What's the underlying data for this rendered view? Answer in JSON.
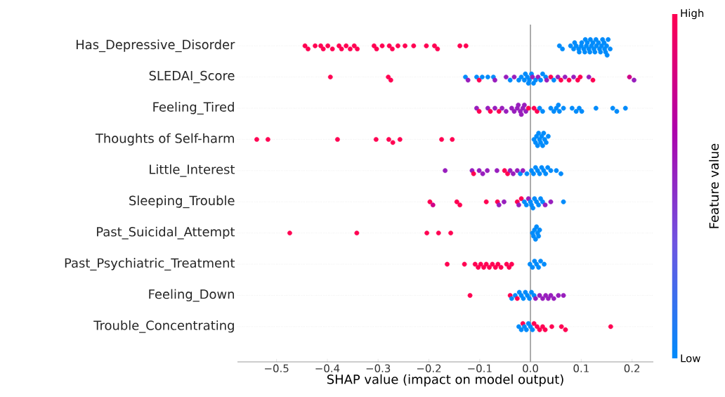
{
  "chart_data": {
    "type": "scatter",
    "orientation": "horizontal",
    "xlabel": "SHAP value (impact on model output)",
    "clabel": "Feature value",
    "categories": [
      "Has_Depressive_Disorder",
      "SLEDAI_Score",
      "Feeling_Tired",
      "Thoughts of Self-harm",
      "Little_Interest",
      "Sleeping_Trouble",
      "Past_Suicidal_Attempt",
      "Past_Psychiatric_Treatment",
      "Feeling_Down",
      "Trouble_Concentrating"
    ],
    "series": [
      {
        "x": [
          "Has_Depressive_Disorder",
          "Has_Depressive_Disorder",
          "Has_Depressive_Disorder",
          "Has_Depressive_Disorder",
          "Has_Depressive_Disorder",
          "Has_Depressive_Disorder",
          "Has_Depressive_Disorder",
          "Has_Depressive_Disorder",
          "Has_Depressive_Disorder",
          "Has_Depressive_Disorder",
          "Has_Depressive_Disorder",
          "Has_Depressive_Disorder",
          "Has_Depressive_Disorder",
          "Has_Depressive_Disorder",
          "Has_Depressive_Disorder",
          "Has_Depressive_Disorder",
          "Has_Depressive_Disorder",
          "Has_Depressive_Disorder",
          "Has_Depressive_Disorder",
          "Has_Depressive_Disorder",
          "Has_Depressive_Disorder",
          "Has_Depressive_Disorder",
          "Has_Depressive_Disorder",
          "Has_Depressive_Disorder",
          "Has_Depressive_Disorder",
          "Has_Depressive_Disorder",
          "Has_Depressive_Disorder",
          "Has_Depressive_Disorder",
          "Has_Depressive_Disorder",
          "Has_Depressive_Disorder",
          "Has_Depressive_Disorder",
          "Has_Depressive_Disorder",
          "Has_Depressive_Disorder",
          "Has_Depressive_Disorder",
          "Has_Depressive_Disorder",
          "Has_Depressive_Disorder",
          "Has_Depressive_Disorder",
          "Has_Depressive_Disorder",
          "Has_Depressive_Disorder",
          "Has_Depressive_Disorder",
          "Has_Depressive_Disorder",
          "Has_Depressive_Disorder",
          "Has_Depressive_Disorder",
          "Has_Depressive_Disorder",
          "Has_Depressive_Disorder",
          "Has_Depressive_Disorder",
          "Has_Depressive_Disorder",
          "Has_Depressive_Disorder",
          "Has_Depressive_Disorder",
          "Has_Depressive_Disorder",
          "Has_Depressive_Disorder",
          "Has_Depressive_Disorder",
          "Has_Depressive_Disorder",
          "Has_Depressive_Disorder",
          "Has_Depressive_Disorder",
          "Has_Depressive_Disorder",
          "Has_Depressive_Disorder",
          "Has_Depressive_Disorder",
          "Has_Depressive_Disorder",
          "Has_Depressive_Disorder",
          "Has_Depressive_Disorder",
          "Has_Depressive_Disorder"
        ],
        "colors": [
          "#ff0052",
          "#ff0052",
          "#ff0052",
          "#ff0052",
          "#ff0052",
          "#ff0052",
          "#ff0052",
          "#ff0052",
          "#ff0052",
          "#ff0052",
          "#ff0052",
          "#ff0052",
          "#ff0052",
          "#ff0052",
          "#ff0052",
          "#ff0052",
          "#ff0052",
          "#ff0052",
          "#ff0052",
          "#ff0052",
          "#ff0052",
          "#ff0052",
          "#ff0052",
          "#ff0052",
          "#ff0052",
          "#ff0052",
          "#008bfb",
          "#008bfb",
          "#008bfb",
          "#008bfb",
          "#008bfb",
          "#008bfb",
          "#008bfb",
          "#008bfb",
          "#008bfb",
          "#008bfb",
          "#008bfb",
          "#008bfb",
          "#008bfb",
          "#008bfb",
          "#008bfb",
          "#008bfb",
          "#008bfb",
          "#008bfb",
          "#008bfb",
          "#008bfb",
          "#008bfb",
          "#008bfb",
          "#008bfb",
          "#008bfb",
          "#008bfb",
          "#008bfb",
          "#008bfb",
          "#008bfb",
          "#008bfb",
          "#008bfb",
          "#008bfb",
          "#008bfb",
          "#008bfb",
          "#008bfb",
          "#008bfb",
          "#008bfb"
        ],
        "values": [
          -0.444,
          -0.438,
          -0.424,
          -0.413,
          -0.408,
          -0.399,
          -0.39,
          -0.377,
          -0.372,
          -0.363,
          -0.355,
          -0.347,
          -0.341,
          -0.308,
          -0.303,
          -0.292,
          -0.278,
          -0.272,
          -0.261,
          -0.247,
          -0.23,
          -0.205,
          -0.189,
          -0.183,
          -0.139,
          -0.127,
          0.057,
          0.063,
          0.079,
          0.085,
          0.087,
          0.09,
          0.095,
          0.096,
          0.1,
          0.101,
          0.105,
          0.107,
          0.108,
          0.11,
          0.112,
          0.115,
          0.117,
          0.118,
          0.12,
          0.123,
          0.125,
          0.127,
          0.129,
          0.13,
          0.134,
          0.136,
          0.138,
          0.14,
          0.142,
          0.145,
          0.146,
          0.148,
          0.15,
          0.151,
          0.153,
          0.157
        ],
        "cvalues": [
          1,
          1,
          1,
          1,
          1,
          1,
          1,
          1,
          1,
          1,
          1,
          1,
          1,
          1,
          1,
          1,
          1,
          1,
          1,
          1,
          1,
          1,
          1,
          1,
          1,
          1,
          0,
          0,
          0,
          0,
          0,
          0,
          0,
          0,
          0,
          0,
          0,
          0,
          0,
          0,
          0,
          0,
          0,
          0,
          0,
          0,
          0,
          0,
          0,
          0,
          0,
          0,
          0,
          0,
          0,
          0,
          0,
          0,
          0,
          0,
          0,
          0
        ]
      },
      {
        "x": [
          "SLEDAI_Score",
          "SLEDAI_Score",
          "SLEDAI_Score",
          "SLEDAI_Score",
          "SLEDAI_Score",
          "SLEDAI_Score",
          "SLEDAI_Score",
          "SLEDAI_Score",
          "SLEDAI_Score",
          "SLEDAI_Score",
          "SLEDAI_Score",
          "SLEDAI_Score",
          "SLEDAI_Score",
          "SLEDAI_Score",
          "SLEDAI_Score",
          "SLEDAI_Score",
          "SLEDAI_Score",
          "SLEDAI_Score",
          "SLEDAI_Score",
          "SLEDAI_Score",
          "SLEDAI_Score",
          "SLEDAI_Score",
          "SLEDAI_Score",
          "SLEDAI_Score",
          "SLEDAI_Score",
          "SLEDAI_Score",
          "SLEDAI_Score",
          "SLEDAI_Score",
          "SLEDAI_Score",
          "SLEDAI_Score",
          "SLEDAI_Score",
          "SLEDAI_Score",
          "SLEDAI_Score",
          "SLEDAI_Score",
          "SLEDAI_Score",
          "SLEDAI_Score",
          "SLEDAI_Score",
          "SLEDAI_Score",
          "SLEDAI_Score",
          "SLEDAI_Score",
          "SLEDAI_Score",
          "SLEDAI_Score",
          "SLEDAI_Score"
        ],
        "colors": [
          "#ff0052",
          "#ff0052",
          "#ff0052",
          "#008bfb",
          "#981ebd",
          "#008bfb",
          "#ff0052",
          "#008bfb",
          "#008bfb",
          "#008bfb",
          "#981ebd",
          "#981ebd",
          "#008bfb",
          "#981ebd",
          "#008bfb",
          "#008bfb",
          "#008bfb",
          "#008bfb",
          "#008bfb",
          "#008bfb",
          "#008bfb",
          "#008bfb",
          "#981ebd",
          "#008bfb",
          "#008bfb",
          "#981ebd",
          "#008bfb",
          "#008bfb",
          "#008bfb",
          "#981ebd",
          "#ff0052",
          "#008bfb",
          "#981ebd",
          "#ff0052",
          "#981ebd",
          "#ff0052",
          "#981ebd",
          "#ff0052",
          "#ff0052",
          "#981ebd",
          "#ff0052",
          "#cf0087",
          "#981ebd"
        ],
        "values": [
          -0.394,
          -0.28,
          -0.275,
          -0.128,
          -0.123,
          -0.106,
          -0.101,
          -0.095,
          -0.084,
          -0.073,
          -0.07,
          -0.048,
          -0.04,
          -0.032,
          -0.023,
          -0.018,
          -0.012,
          -0.01,
          -0.006,
          -0.004,
          -0.002,
          0.002,
          0.004,
          0.006,
          0.01,
          0.015,
          0.02,
          0.024,
          0.03,
          0.032,
          0.04,
          0.046,
          0.054,
          0.06,
          0.068,
          0.076,
          0.085,
          0.093,
          0.098,
          0.115,
          0.123,
          0.195,
          0.204
        ],
        "cvalues": [
          1,
          1,
          1,
          0,
          0.55,
          0,
          1,
          0,
          0,
          0,
          0.55,
          0.55,
          0,
          0.55,
          0,
          0,
          0,
          0,
          0,
          0,
          0,
          0,
          0.55,
          0,
          0,
          0.55,
          0,
          0,
          0,
          0.55,
          1,
          0,
          0.55,
          1,
          0.55,
          1,
          0.55,
          1,
          1,
          0.55,
          1,
          0.8,
          0.55
        ]
      },
      {
        "x": [
          "Feeling_Tired",
          "Feeling_Tired",
          "Feeling_Tired",
          "Feeling_Tired",
          "Feeling_Tired",
          "Feeling_Tired",
          "Feeling_Tired",
          "Feeling_Tired",
          "Feeling_Tired",
          "Feeling_Tired",
          "Feeling_Tired",
          "Feeling_Tired",
          "Feeling_Tired",
          "Feeling_Tired",
          "Feeling_Tired",
          "Feeling_Tired",
          "Feeling_Tired",
          "Feeling_Tired",
          "Feeling_Tired",
          "Feeling_Tired",
          "Feeling_Tired",
          "Feeling_Tired",
          "Feeling_Tired",
          "Feeling_Tired",
          "Feeling_Tired",
          "Feeling_Tired",
          "Feeling_Tired",
          "Feeling_Tired",
          "Feeling_Tired",
          "Feeling_Tired",
          "Feeling_Tired",
          "Feeling_Tired",
          "Feeling_Tired",
          "Feeling_Tired",
          "Feeling_Tired",
          "Feeling_Tired"
        ],
        "colors": [
          "#981ebd",
          "#ff0052",
          "#981ebd",
          "#ff0052",
          "#981ebd",
          "#ff0052",
          "#981ebd",
          "#981ebd",
          "#981ebd",
          "#981ebd",
          "#981ebd",
          "#981ebd",
          "#981ebd",
          "#981ebd",
          "#981ebd",
          "#981ebd",
          "#981ebd",
          "#ff0052",
          "#ff0052",
          "#ff0052",
          "#008bfb",
          "#008bfb",
          "#008bfb",
          "#008bfb",
          "#008bfb",
          "#008bfb",
          "#008bfb",
          "#008bfb",
          "#008bfb",
          "#008bfb",
          "#008bfb",
          "#008bfb",
          "#008bfb",
          "#008bfb",
          "#008bfb",
          "#008bfb"
        ],
        "values": [
          -0.106,
          -0.101,
          -0.084,
          -0.079,
          -0.07,
          -0.062,
          -0.056,
          -0.048,
          -0.037,
          -0.032,
          -0.026,
          -0.024,
          -0.02,
          -0.018,
          -0.015,
          -0.012,
          -0.009,
          -0.004,
          0.007,
          0.013,
          0.018,
          0.024,
          0.04,
          0.046,
          0.051,
          0.055,
          0.057,
          0.065,
          0.082,
          0.09,
          0.096,
          0.101,
          0.129,
          0.162,
          0.17,
          0.187
        ],
        "cvalues": [
          0.55,
          1,
          0.55,
          1,
          0.55,
          1,
          0.55,
          0.55,
          0.55,
          0.55,
          0.55,
          0.55,
          0.55,
          0.55,
          0.55,
          0.55,
          0.55,
          1,
          1,
          1,
          0,
          0,
          0,
          0,
          0,
          0,
          0,
          0,
          0,
          0,
          0,
          0,
          0,
          0,
          0,
          0
        ]
      },
      {
        "x": [
          "Thoughts of Self-harm",
          "Thoughts of Self-harm",
          "Thoughts of Self-harm",
          "Thoughts of Self-harm",
          "Thoughts of Self-harm",
          "Thoughts of Self-harm",
          "Thoughts of Self-harm",
          "Thoughts of Self-harm",
          "Thoughts of Self-harm",
          "Thoughts of Self-harm",
          "Thoughts of Self-harm",
          "Thoughts of Self-harm",
          "Thoughts of Self-harm",
          "Thoughts of Self-harm",
          "Thoughts of Self-harm",
          "Thoughts of Self-harm",
          "Thoughts of Self-harm",
          "Thoughts of Self-harm",
          "Thoughts of Self-harm",
          "Thoughts of Self-harm",
          "Thoughts of Self-harm",
          "Thoughts of Self-harm"
        ],
        "colors": [
          "#ff0052",
          "#ff0052",
          "#ff0052",
          "#ff0052",
          "#ff0052",
          "#ff0052",
          "#ff0052",
          "#ff0052",
          "#ff0052",
          "#008bfb",
          "#008bfb",
          "#008bfb",
          "#008bfb",
          "#008bfb",
          "#008bfb",
          "#008bfb",
          "#008bfb",
          "#008bfb",
          "#008bfb",
          "#008bfb",
          "#008bfb",
          "#008bfb"
        ],
        "values": [
          -0.539,
          -0.517,
          -0.38,
          -0.304,
          -0.279,
          -0.271,
          -0.257,
          -0.175,
          -0.154,
          0.007,
          0.01,
          0.012,
          0.014,
          0.016,
          0.018,
          0.02,
          0.022,
          0.024,
          0.026,
          0.028,
          0.031,
          0.035
        ],
        "cvalues": [
          1,
          1,
          1,
          1,
          1,
          1,
          1,
          1,
          1,
          0,
          0,
          0,
          0,
          0,
          0,
          0,
          0,
          0,
          0,
          0,
          0,
          0
        ]
      },
      {
        "x": [
          "Little_Interest",
          "Little_Interest",
          "Little_Interest",
          "Little_Interest",
          "Little_Interest",
          "Little_Interest",
          "Little_Interest",
          "Little_Interest",
          "Little_Interest",
          "Little_Interest",
          "Little_Interest",
          "Little_Interest",
          "Little_Interest",
          "Little_Interest",
          "Little_Interest",
          "Little_Interest",
          "Little_Interest",
          "Little_Interest",
          "Little_Interest",
          "Little_Interest",
          "Little_Interest",
          "Little_Interest",
          "Little_Interest",
          "Little_Interest",
          "Little_Interest",
          "Little_Interest",
          "Little_Interest"
        ],
        "colors": [
          "#981ebd",
          "#981ebd",
          "#ff0052",
          "#981ebd",
          "#981ebd",
          "#981ebd",
          "#981ebd",
          "#ff0052",
          "#ff0052",
          "#981ebd",
          "#981ebd",
          "#981ebd",
          "#008bfb",
          "#981ebd",
          "#008bfb",
          "#008bfb",
          "#008bfb",
          "#008bfb",
          "#008bfb",
          "#008bfb",
          "#008bfb",
          "#008bfb",
          "#008bfb",
          "#008bfb",
          "#008bfb",
          "#008bfb",
          "#008bfb"
        ],
        "values": [
          -0.168,
          -0.115,
          -0.112,
          -0.101,
          -0.094,
          -0.085,
          -0.066,
          -0.051,
          -0.045,
          -0.04,
          -0.034,
          -0.026,
          -0.02,
          -0.015,
          -0.007,
          0.002,
          0.006,
          0.01,
          0.014,
          0.018,
          0.022,
          0.026,
          0.03,
          0.034,
          0.04,
          0.051,
          0.06
        ],
        "cvalues": [
          0.55,
          0.55,
          1,
          0.55,
          0.55,
          0.55,
          0.55,
          1,
          1,
          0.55,
          0.55,
          0.55,
          0,
          0.55,
          0,
          0,
          0,
          0,
          0,
          0,
          0,
          0,
          0,
          0,
          0,
          0,
          0
        ]
      },
      {
        "x": [
          "Sleeping_Trouble",
          "Sleeping_Trouble",
          "Sleeping_Trouble",
          "Sleeping_Trouble",
          "Sleeping_Trouble",
          "Sleeping_Trouble",
          "Sleeping_Trouble",
          "Sleeping_Trouble",
          "Sleeping_Trouble",
          "Sleeping_Trouble",
          "Sleeping_Trouble",
          "Sleeping_Trouble",
          "Sleeping_Trouble",
          "Sleeping_Trouble",
          "Sleeping_Trouble",
          "Sleeping_Trouble",
          "Sleeping_Trouble",
          "Sleeping_Trouble",
          "Sleeping_Trouble",
          "Sleeping_Trouble",
          "Sleeping_Trouble",
          "Sleeping_Trouble",
          "Sleeping_Trouble",
          "Sleeping_Trouble",
          "Sleeping_Trouble"
        ],
        "colors": [
          "#ff0052",
          "#cf0087",
          "#ff0052",
          "#ff0052",
          "#ff0052",
          "#ff0052",
          "#981ebd",
          "#981ebd",
          "#ff0052",
          "#981ebd",
          "#ff0052",
          "#008bfb",
          "#008bfb",
          "#981ebd",
          "#008bfb",
          "#008bfb",
          "#008bfb",
          "#008bfb",
          "#008bfb",
          "#008bfb",
          "#008bfb",
          "#008bfb",
          "#981ebd",
          "#981ebd",
          "#008bfb"
        ],
        "values": [
          -0.198,
          -0.192,
          -0.145,
          -0.139,
          -0.087,
          -0.065,
          -0.062,
          -0.052,
          -0.026,
          -0.023,
          -0.018,
          -0.012,
          -0.008,
          -0.004,
          0.0,
          0.002,
          0.005,
          0.008,
          0.012,
          0.016,
          0.02,
          0.024,
          0.029,
          0.04,
          0.065
        ],
        "cvalues": [
          1,
          0.8,
          1,
          1,
          1,
          1,
          0.55,
          0.55,
          1,
          0.55,
          1,
          0,
          0,
          0.55,
          0,
          0,
          0,
          0,
          0,
          0,
          0,
          0,
          0.55,
          0.55,
          0
        ]
      },
      {
        "x": [
          "Past_Suicidal_Attempt",
          "Past_Suicidal_Attempt",
          "Past_Suicidal_Attempt",
          "Past_Suicidal_Attempt",
          "Past_Suicidal_Attempt",
          "Past_Suicidal_Attempt",
          "Past_Suicidal_Attempt",
          "Past_Suicidal_Attempt",
          "Past_Suicidal_Attempt",
          "Past_Suicidal_Attempt",
          "Past_Suicidal_Attempt",
          "Past_Suicidal_Attempt",
          "Past_Suicidal_Attempt"
        ],
        "colors": [
          "#ff0052",
          "#ff0052",
          "#ff0052",
          "#ff0052",
          "#ff0052",
          "#008bfb",
          "#008bfb",
          "#008bfb",
          "#008bfb",
          "#008bfb",
          "#008bfb",
          "#008bfb",
          "#008bfb"
        ],
        "values": [
          -0.474,
          -0.342,
          -0.204,
          -0.181,
          -0.157,
          0.004,
          0.006,
          0.008,
          0.01,
          0.012,
          0.014,
          0.016,
          0.018
        ],
        "cvalues": [
          1,
          1,
          1,
          1,
          1,
          0,
          0,
          0,
          0,
          0,
          0,
          0,
          0
        ]
      },
      {
        "x": [
          "Past_Psychiatric_Treatment",
          "Past_Psychiatric_Treatment",
          "Past_Psychiatric_Treatment",
          "Past_Psychiatric_Treatment",
          "Past_Psychiatric_Treatment",
          "Past_Psychiatric_Treatment",
          "Past_Psychiatric_Treatment",
          "Past_Psychiatric_Treatment",
          "Past_Psychiatric_Treatment",
          "Past_Psychiatric_Treatment",
          "Past_Psychiatric_Treatment",
          "Past_Psychiatric_Treatment",
          "Past_Psychiatric_Treatment",
          "Past_Psychiatric_Treatment",
          "Past_Psychiatric_Treatment",
          "Past_Psychiatric_Treatment",
          "Past_Psychiatric_Treatment",
          "Past_Psychiatric_Treatment",
          "Past_Psychiatric_Treatment",
          "Past_Psychiatric_Treatment",
          "Past_Psychiatric_Treatment",
          "Past_Psychiatric_Treatment"
        ],
        "colors": [
          "#ff0052",
          "#ff0052",
          "#ff0052",
          "#ff0052",
          "#ff0052",
          "#ff0052",
          "#ff0052",
          "#ff0052",
          "#ff0052",
          "#ff0052",
          "#ff0052",
          "#ff0052",
          "#ff0052",
          "#ff0052",
          "#ff0052",
          "#008bfb",
          "#008bfb",
          "#008bfb",
          "#008bfb",
          "#008bfb",
          "#008bfb",
          "#008bfb"
        ],
        "values": [
          -0.164,
          -0.13,
          -0.109,
          -0.103,
          -0.098,
          -0.092,
          -0.087,
          -0.081,
          -0.075,
          -0.069,
          -0.064,
          -0.058,
          -0.047,
          -0.042,
          -0.037,
          -0.001,
          0.004,
          0.008,
          0.012,
          0.016,
          0.02,
          0.027
        ],
        "cvalues": [
          1,
          1,
          1,
          1,
          1,
          1,
          1,
          1,
          1,
          1,
          1,
          1,
          1,
          1,
          1,
          0,
          0,
          0,
          0,
          0,
          0,
          0
        ]
      },
      {
        "x": [
          "Feeling_Down",
          "Feeling_Down",
          "Feeling_Down",
          "Feeling_Down",
          "Feeling_Down",
          "Feeling_Down",
          "Feeling_Down",
          "Feeling_Down",
          "Feeling_Down",
          "Feeling_Down",
          "Feeling_Down",
          "Feeling_Down",
          "Feeling_Down",
          "Feeling_Down",
          "Feeling_Down",
          "Feeling_Down",
          "Feeling_Down",
          "Feeling_Down",
          "Feeling_Down",
          "Feeling_Down",
          "Feeling_Down",
          "Feeling_Down"
        ],
        "colors": [
          "#ff0052",
          "#ff0052",
          "#008bfb",
          "#008bfb",
          "#ff0052",
          "#008bfb",
          "#008bfb",
          "#008bfb",
          "#008bfb",
          "#008bfb",
          "#008bfb",
          "#008bfb",
          "#008bfb",
          "#981ebd",
          "#981ebd",
          "#981ebd",
          "#981ebd",
          "#981ebd",
          "#981ebd",
          "#981ebd",
          "#981ebd",
          "#981ebd"
        ],
        "values": [
          -0.119,
          -0.04,
          -0.037,
          -0.03,
          -0.026,
          -0.022,
          -0.018,
          -0.014,
          -0.01,
          -0.006,
          -0.002,
          0.002,
          0.007,
          0.01,
          0.018,
          0.024,
          0.03,
          0.035,
          0.04,
          0.046,
          0.055,
          0.065
        ],
        "cvalues": [
          1,
          1,
          0,
          0,
          1,
          0,
          0,
          0,
          0,
          0,
          0,
          0,
          0,
          0.55,
          0.55,
          0.55,
          0.55,
          0.55,
          0.55,
          0.55,
          0.55,
          0.55
        ]
      },
      {
        "x": [
          "Trouble_Concentrating",
          "Trouble_Concentrating",
          "Trouble_Concentrating",
          "Trouble_Concentrating",
          "Trouble_Concentrating",
          "Trouble_Concentrating",
          "Trouble_Concentrating",
          "Trouble_Concentrating",
          "Trouble_Concentrating",
          "Trouble_Concentrating",
          "Trouble_Concentrating",
          "Trouble_Concentrating",
          "Trouble_Concentrating",
          "Trouble_Concentrating",
          "Trouble_Concentrating",
          "Trouble_Concentrating",
          "Trouble_Concentrating"
        ],
        "colors": [
          "#008bfb",
          "#008bfb",
          "#ff0052",
          "#008bfb",
          "#008bfb",
          "#008bfb",
          "#008bfb",
          "#008bfb",
          "#ff0052",
          "#ff0052",
          "#ff0052",
          "#ff0052",
          "#ff0052",
          "#ff0052",
          "#ff0052",
          "#ff0052",
          "#ff0052"
        ],
        "values": [
          -0.023,
          -0.018,
          -0.015,
          -0.012,
          -0.008,
          -0.004,
          0.0,
          0.004,
          0.007,
          0.013,
          0.018,
          0.024,
          0.029,
          0.042,
          0.061,
          0.069,
          0.158
        ],
        "cvalues": [
          0,
          0,
          1,
          0,
          0,
          0,
          0,
          0,
          1,
          1,
          1,
          1,
          1,
          1,
          1,
          1,
          1
        ]
      }
    ],
    "xlim": [
      -0.577,
      0.242
    ],
    "xticks": [
      {
        "value": -0.5,
        "label": "−0.5"
      },
      {
        "value": -0.4,
        "label": "−0.4"
      },
      {
        "value": -0.3,
        "label": "−0.3"
      },
      {
        "value": -0.2,
        "label": "−0.2"
      },
      {
        "value": -0.1,
        "label": "−0.1"
      },
      {
        "value": 0,
        "label": "0.0"
      },
      {
        "value": 0.1,
        "label": "0.1"
      },
      {
        "value": 0.2,
        "label": "0.2"
      }
    ],
    "clim": [
      0,
      1
    ],
    "cticks": [
      {
        "value": 0,
        "label": "Low"
      },
      {
        "value": 1,
        "label": "High"
      }
    ],
    "ref_lines": [
      {
        "axis": "x",
        "value": 0,
        "color": "#999999"
      }
    ],
    "grid": "y",
    "marker": "circle"
  }
}
